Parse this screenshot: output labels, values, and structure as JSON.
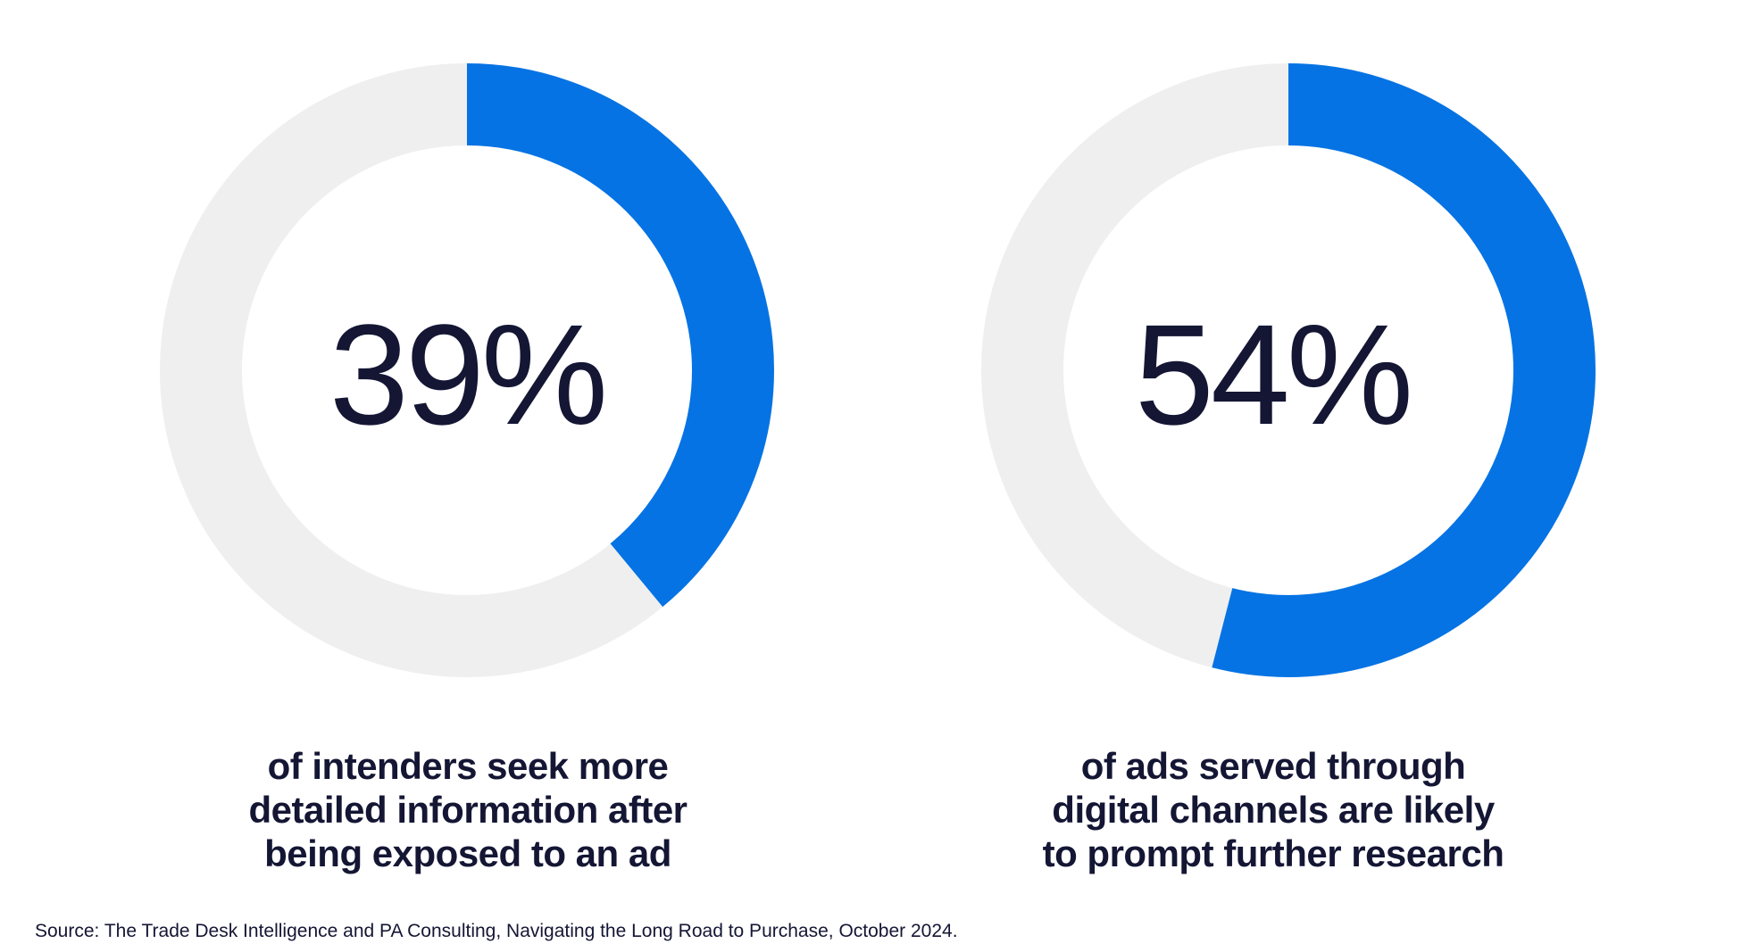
{
  "chart_data": [
    {
      "type": "pie",
      "value_label": "39%",
      "values": [
        39,
        61
      ],
      "caption_lines": [
        "of intenders seek more",
        "detailed information after",
        "being exposed to an ad"
      ]
    },
    {
      "type": "pie",
      "value_label": "54%",
      "values": [
        54,
        46
      ],
      "caption_lines": [
        "of ads served through",
        "digital channels are likely",
        "to prompt further research"
      ]
    }
  ],
  "colors": {
    "highlight": "#0573E3",
    "track": "#EFEFEF",
    "text": "#141634"
  },
  "source": "Source: The Trade Desk Intelligence and PA Consulting, Navigating the Long Road to Purchase, October 2024."
}
